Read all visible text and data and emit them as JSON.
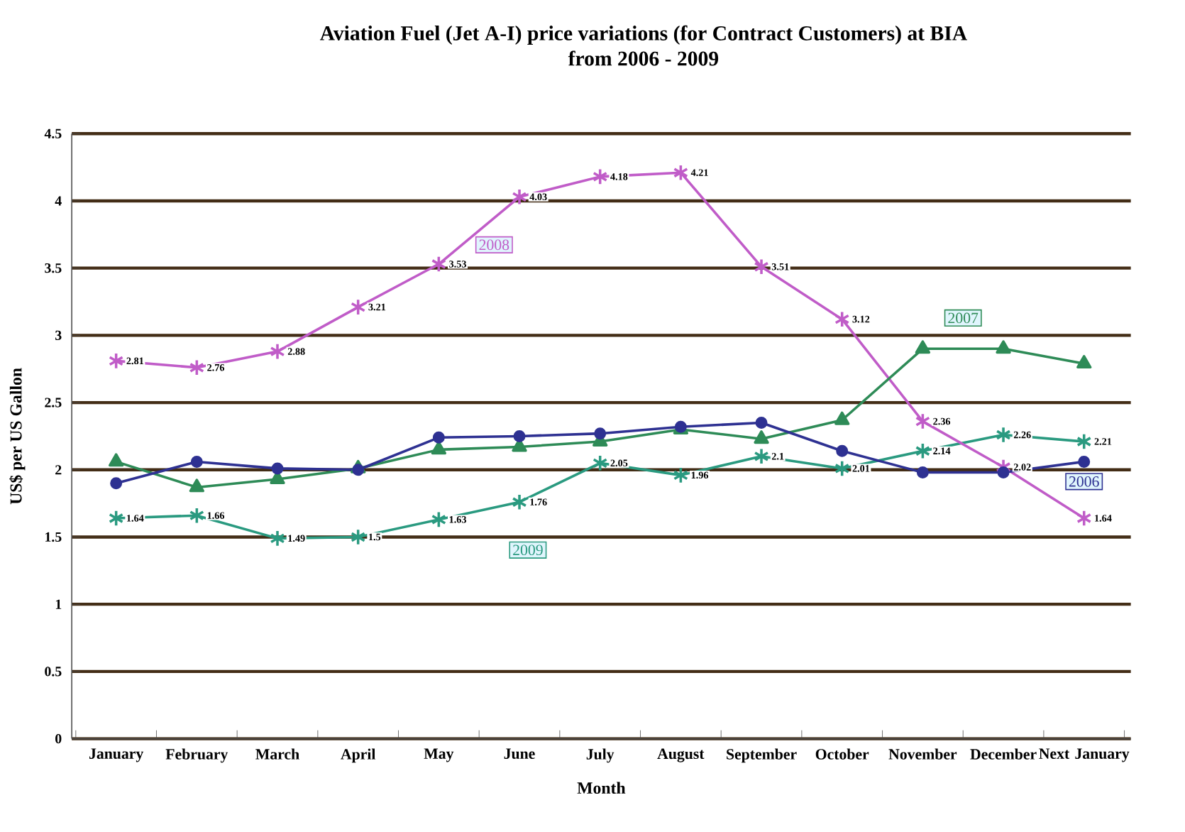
{
  "chart_data": {
    "type": "line",
    "title": "Aviation Fuel (Jet A-I) price variations (for Contract Customers) at BIA",
    "subtitle": "from 2006 - 2009",
    "xlabel": "Month",
    "ylabel": "US$ per US Gallon",
    "categories": [
      "January",
      "February",
      "March",
      "April",
      "May",
      "June",
      "July",
      "August",
      "September",
      "October",
      "November",
      "December",
      "Next January"
    ],
    "ylim": [
      0,
      4.5
    ],
    "yticks": [
      0,
      0.5,
      1,
      1.5,
      2,
      2.5,
      3,
      3.5,
      4,
      4.5
    ],
    "grid": "y",
    "series": [
      {
        "name": "2006",
        "color": "#2e3192",
        "marker": "circle",
        "values": [
          1.9,
          2.06,
          2.01,
          2.0,
          2.24,
          2.25,
          2.27,
          2.32,
          2.35,
          2.14,
          1.98,
          1.98,
          2.06
        ]
      },
      {
        "name": "2007",
        "color": "#2e8b57",
        "marker": "triangle",
        "values": [
          2.06,
          1.87,
          1.93,
          2.01,
          2.15,
          2.17,
          2.21,
          2.3,
          2.23,
          2.37,
          2.9,
          2.9,
          2.79
        ]
      },
      {
        "name": "2008",
        "color": "#c05cc8",
        "marker": "cross",
        "values": [
          2.81,
          2.76,
          2.88,
          3.21,
          3.53,
          4.03,
          4.18,
          4.21,
          3.51,
          3.12,
          2.36,
          2.02,
          1.64
        ],
        "value_labels": [
          "2.81",
          "2.76",
          "2.88",
          "3.21",
          "3.53",
          "4.03",
          "4.18",
          "4.21",
          "3.51",
          "3.12",
          "2.36",
          "2.02",
          "1.64"
        ]
      },
      {
        "name": "2009",
        "color": "#2a9a80",
        "marker": "cross",
        "values": [
          1.64,
          1.66,
          1.49,
          1.5,
          1.63,
          1.76,
          2.05,
          1.96,
          2.1,
          2.01,
          2.14,
          2.26,
          2.21
        ],
        "value_labels": [
          "1.64",
          "1.66",
          "1.49",
          "1.5",
          "1.63",
          "1.76",
          "2.05",
          "1.96",
          "2.1",
          "2.01",
          "2.14",
          "2.26",
          "2.21"
        ]
      }
    ]
  }
}
